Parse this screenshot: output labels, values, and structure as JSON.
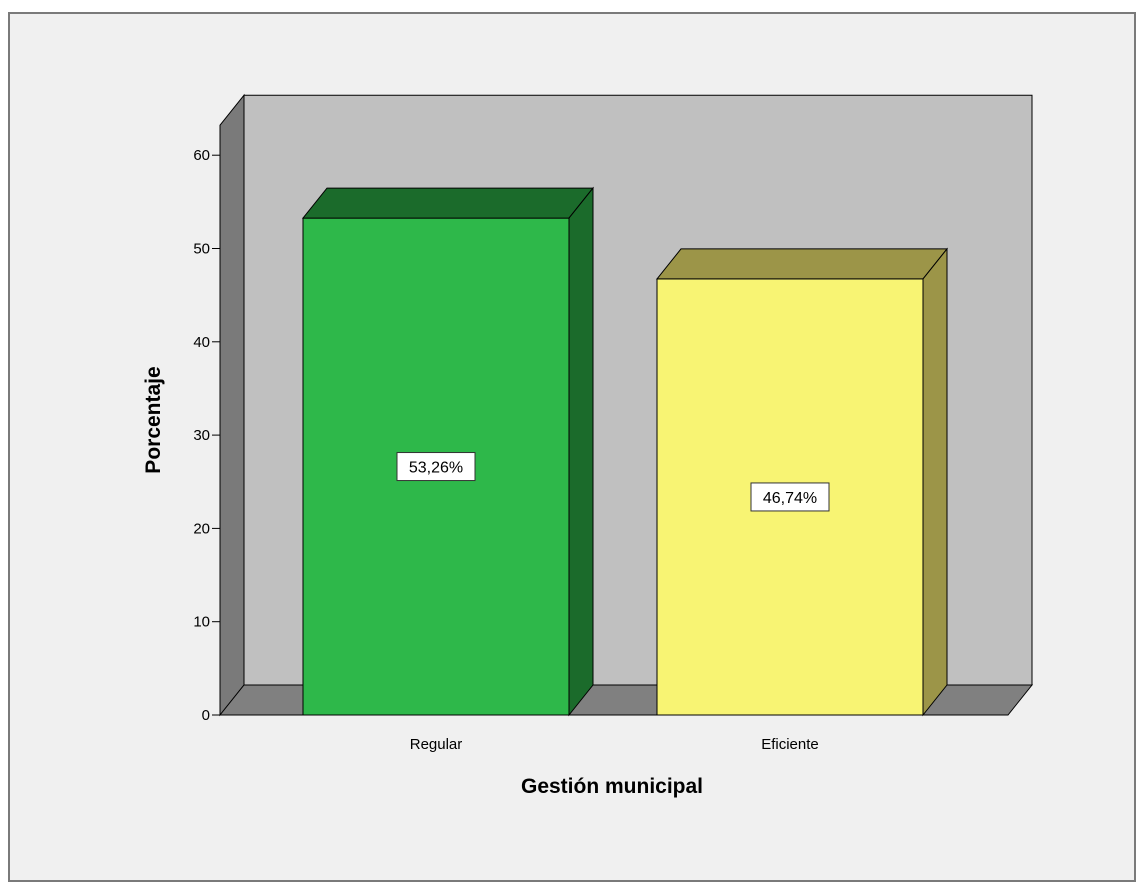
{
  "chart_data": {
    "type": "bar",
    "style": "3d",
    "categories": [
      "Regular",
      "Eficiente"
    ],
    "values": [
      53.26,
      46.74
    ],
    "data_labels": [
      "53,26%",
      "46,74%"
    ],
    "colors": [
      "#2eb84a",
      "#f8f473"
    ],
    "side_colors": [
      "#1b6b2b",
      "#9c9548"
    ],
    "xlabel": "Gestión municipal",
    "ylabel": "Porcentaje",
    "ylim": [
      0,
      60
    ],
    "yticks": [
      0,
      10,
      20,
      30,
      40,
      50,
      60
    ],
    "wall_color": "#c0c0c0",
    "floor_color": "#808080",
    "background": "#f0f0f0"
  }
}
